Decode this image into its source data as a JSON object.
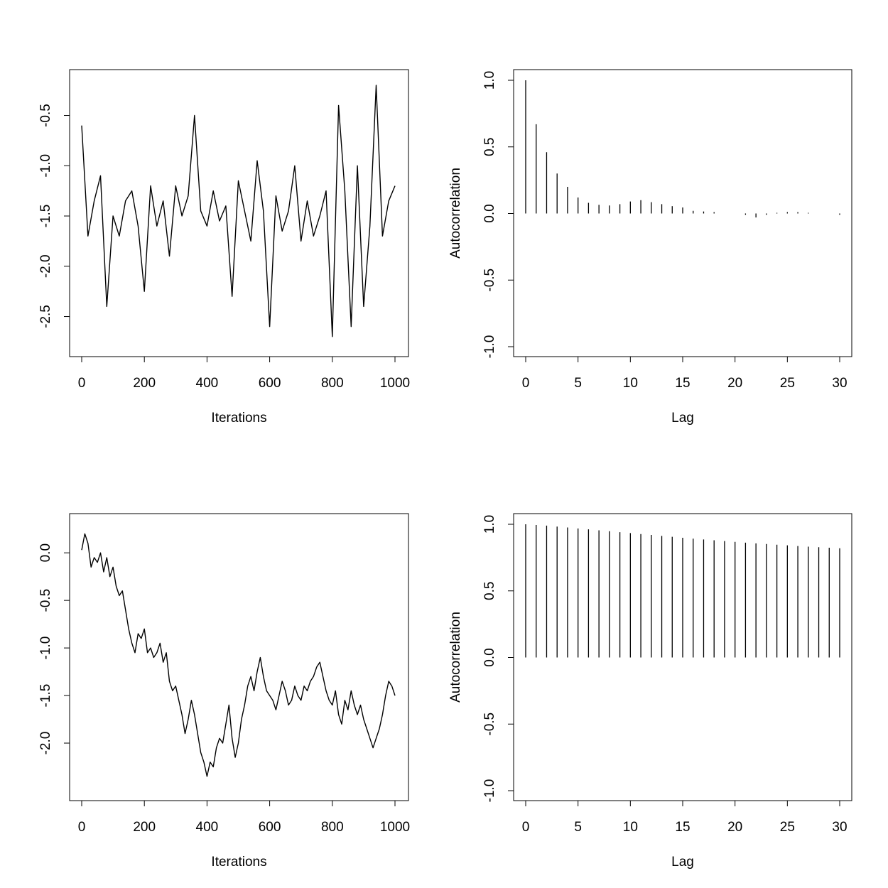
{
  "chart_data": [
    {
      "type": "line",
      "title": "",
      "xlabel": "Iterations",
      "ylabel": "",
      "xlim": [
        0,
        1000
      ],
      "ylim": [
        -2.8,
        -0.15
      ],
      "xticks": [
        0,
        200,
        400,
        600,
        800,
        1000
      ],
      "xtick_labels": [
        "0",
        "200",
        "400",
        "600",
        "800",
        "1000"
      ],
      "yticks": [
        -2.5,
        -2.0,
        -1.5,
        -1.0,
        -0.5
      ],
      "ytick_labels": [
        "-2.5",
        "-2.0",
        "-1.5",
        "-1.0",
        "-0.5"
      ],
      "grid": false,
      "series": [
        {
          "x": [
            0,
            20,
            40,
            60,
            80,
            100,
            120,
            140,
            160,
            180,
            200,
            220,
            240,
            260,
            280,
            300,
            320,
            340,
            360,
            380,
            400,
            420,
            440,
            460,
            480,
            500,
            520,
            540,
            560,
            580,
            600,
            620,
            640,
            660,
            680,
            700,
            720,
            740,
            760,
            780,
            800,
            820,
            840,
            860,
            880,
            900,
            920,
            940,
            960,
            980,
            1000
          ],
          "y": [
            -0.6,
            -1.7,
            -1.35,
            -1.1,
            -2.4,
            -1.5,
            -1.7,
            -1.35,
            -1.25,
            -1.6,
            -2.25,
            -1.2,
            -1.6,
            -1.35,
            -1.9,
            -1.2,
            -1.5,
            -1.3,
            -0.5,
            -1.45,
            -1.6,
            -1.25,
            -1.55,
            -1.4,
            -2.3,
            -1.15,
            -1.45,
            -1.75,
            -0.95,
            -1.45,
            -2.6,
            -1.3,
            -1.65,
            -1.45,
            -1.0,
            -1.75,
            -1.35,
            -1.7,
            -1.5,
            -1.25,
            -2.7,
            -0.4,
            -1.25,
            -2.6,
            -1.0,
            -2.4,
            -1.6,
            -0.2,
            -1.7,
            -1.35,
            -1.2
          ]
        }
      ]
    },
    {
      "type": "bar",
      "title": "",
      "xlabel": "Lag",
      "ylabel": "Autocorrelation",
      "xlim": [
        0,
        30
      ],
      "ylim": [
        -1,
        1
      ],
      "xticks": [
        0,
        5,
        10,
        15,
        20,
        25,
        30
      ],
      "xtick_labels": [
        "0",
        "5",
        "10",
        "15",
        "20",
        "25",
        "30"
      ],
      "yticks": [
        -1.0,
        -0.5,
        0.0,
        0.5,
        1.0
      ],
      "ytick_labels": [
        "-1.0",
        "-0.5",
        "0.0",
        "0.5",
        "1.0"
      ],
      "grid": false,
      "x": [
        0,
        1,
        2,
        3,
        4,
        5,
        6,
        7,
        8,
        9,
        10,
        11,
        12,
        13,
        14,
        15,
        16,
        17,
        18,
        19,
        20,
        21,
        22,
        23,
        24,
        25,
        26,
        27,
        28,
        29,
        30
      ],
      "values": [
        1.0,
        0.67,
        0.46,
        0.3,
        0.2,
        0.12,
        0.08,
        0.065,
        0.06,
        0.07,
        0.09,
        0.1,
        0.085,
        0.07,
        0.055,
        0.045,
        0.02,
        0.015,
        0.01,
        0.0,
        0.0,
        -0.01,
        -0.03,
        -0.01,
        0.005,
        0.01,
        0.01,
        0.005,
        0.0,
        0.0,
        -0.01
      ]
    },
    {
      "type": "line",
      "title": "",
      "xlabel": "Iterations",
      "ylabel": "",
      "xlim": [
        0,
        1000
      ],
      "ylim": [
        -2.5,
        0.3
      ],
      "xticks": [
        0,
        200,
        400,
        600,
        800,
        1000
      ],
      "xtick_labels": [
        "0",
        "200",
        "400",
        "600",
        "800",
        "1000"
      ],
      "yticks": [
        -2.0,
        -1.5,
        -1.0,
        -0.5,
        0.0
      ],
      "ytick_labels": [
        "-2.0",
        "-1.5",
        "-1.0",
        "-0.5",
        "0.0"
      ],
      "grid": false,
      "series": [
        {
          "x": [
            0,
            10,
            20,
            30,
            40,
            50,
            60,
            70,
            80,
            90,
            100,
            110,
            120,
            130,
            140,
            150,
            160,
            170,
            180,
            190,
            200,
            210,
            220,
            230,
            240,
            250,
            260,
            270,
            280,
            290,
            300,
            310,
            320,
            330,
            340,
            350,
            360,
            370,
            380,
            390,
            400,
            410,
            420,
            430,
            440,
            450,
            460,
            470,
            480,
            490,
            500,
            510,
            520,
            530,
            540,
            550,
            560,
            570,
            580,
            590,
            600,
            610,
            620,
            630,
            640,
            650,
            660,
            670,
            680,
            690,
            700,
            710,
            720,
            730,
            740,
            750,
            760,
            770,
            780,
            790,
            800,
            810,
            820,
            830,
            840,
            850,
            860,
            870,
            880,
            890,
            900,
            910,
            920,
            930,
            940,
            950,
            960,
            970,
            980,
            990,
            1000
          ],
          "y": [
            0.03,
            0.2,
            0.1,
            -0.15,
            -0.05,
            -0.1,
            0.0,
            -0.2,
            -0.05,
            -0.25,
            -0.15,
            -0.35,
            -0.45,
            -0.4,
            -0.6,
            -0.8,
            -0.95,
            -1.05,
            -0.85,
            -0.9,
            -0.8,
            -1.05,
            -1.0,
            -1.1,
            -1.05,
            -0.95,
            -1.15,
            -1.05,
            -1.35,
            -1.45,
            -1.4,
            -1.55,
            -1.7,
            -1.9,
            -1.75,
            -1.55,
            -1.7,
            -1.9,
            -2.1,
            -2.2,
            -2.35,
            -2.2,
            -2.25,
            -2.05,
            -1.95,
            -2.0,
            -1.8,
            -1.6,
            -1.95,
            -2.15,
            -2.0,
            -1.75,
            -1.6,
            -1.4,
            -1.3,
            -1.45,
            -1.25,
            -1.1,
            -1.3,
            -1.45,
            -1.5,
            -1.55,
            -1.65,
            -1.5,
            -1.35,
            -1.45,
            -1.6,
            -1.55,
            -1.4,
            -1.5,
            -1.55,
            -1.4,
            -1.45,
            -1.35,
            -1.3,
            -1.2,
            -1.15,
            -1.3,
            -1.45,
            -1.55,
            -1.6,
            -1.45,
            -1.7,
            -1.8,
            -1.55,
            -1.65,
            -1.45,
            -1.6,
            -1.7,
            -1.6,
            -1.75,
            -1.85,
            -1.95,
            -2.05,
            -1.95,
            -1.85,
            -1.7,
            -1.5,
            -1.35,
            -1.4,
            -1.5
          ]
        }
      ]
    },
    {
      "type": "bar",
      "title": "",
      "xlabel": "Lag",
      "ylabel": "Autocorrelation",
      "xlim": [
        0,
        30
      ],
      "ylim": [
        -1,
        1
      ],
      "xticks": [
        0,
        5,
        10,
        15,
        20,
        25,
        30
      ],
      "xtick_labels": [
        "0",
        "5",
        "10",
        "15",
        "20",
        "25",
        "30"
      ],
      "yticks": [
        -1.0,
        -0.5,
        0.0,
        0.5,
        1.0
      ],
      "ytick_labels": [
        "-1.0",
        "-0.5",
        "0.0",
        "0.5",
        "1.0"
      ],
      "grid": false,
      "x": [
        0,
        1,
        2,
        3,
        4,
        5,
        6,
        7,
        8,
        9,
        10,
        11,
        12,
        13,
        14,
        15,
        16,
        17,
        18,
        19,
        20,
        21,
        22,
        23,
        24,
        25,
        26,
        27,
        28,
        29,
        30
      ],
      "values": [
        1.0,
        0.995,
        0.99,
        0.983,
        0.976,
        0.969,
        0.962,
        0.955,
        0.948,
        0.941,
        0.934,
        0.927,
        0.92,
        0.913,
        0.906,
        0.899,
        0.892,
        0.886,
        0.88,
        0.874,
        0.868,
        0.862,
        0.857,
        0.852,
        0.847,
        0.842,
        0.837,
        0.832,
        0.828,
        0.824,
        0.82
      ]
    }
  ]
}
